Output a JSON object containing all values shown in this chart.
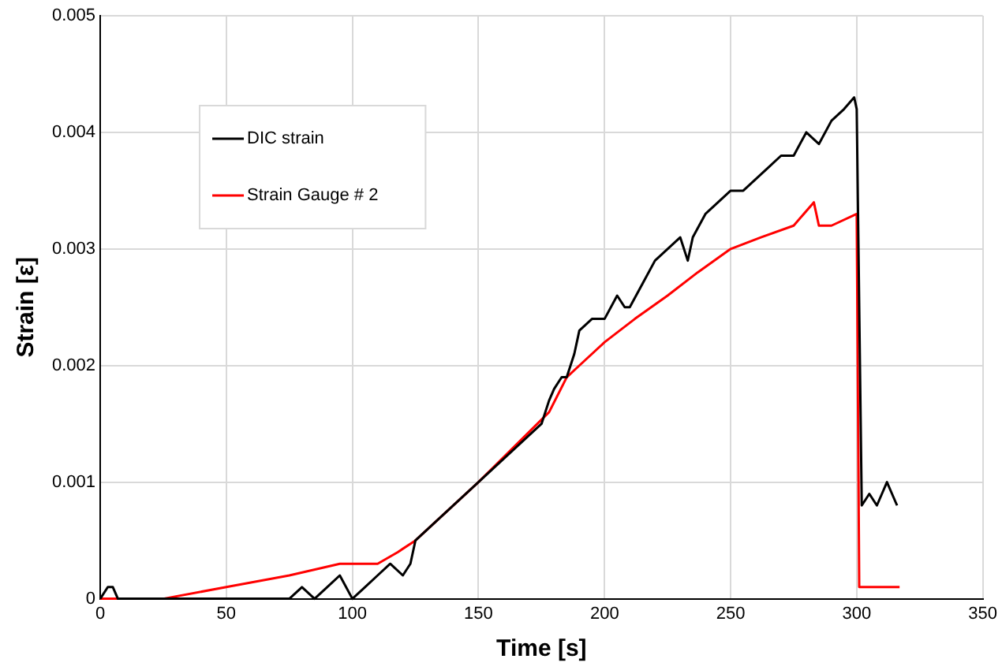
{
  "chart_data": {
    "type": "line",
    "xlabel": "Time [s]",
    "ylabel": "Strain [ε]",
    "xlim": [
      0,
      350
    ],
    "xticks": [
      0,
      50,
      100,
      150,
      200,
      250,
      300,
      350
    ],
    "ylim": [
      0,
      0.005
    ],
    "yticks": [
      0,
      0.001,
      0.002,
      0.003,
      0.004,
      0.005
    ],
    "grid": true,
    "legend": "top left",
    "marker": "none",
    "line_style": "solid",
    "series": [
      {
        "name": "DIC strain",
        "color": "#000000",
        "x": [
          0,
          3,
          5,
          7,
          10,
          13,
          15,
          20,
          30,
          50,
          75,
          80,
          85,
          90,
          95,
          100,
          105,
          110,
          115,
          120,
          123,
          125,
          150,
          175,
          178,
          180,
          183,
          185,
          188,
          190,
          195,
          200,
          205,
          208,
          210,
          215,
          220,
          225,
          230,
          233,
          235,
          240,
          245,
          250,
          255,
          260,
          265,
          270,
          275,
          280,
          285,
          290,
          295,
          299,
          300,
          302,
          305,
          308,
          310,
          312,
          314,
          316
        ],
        "values": [
          0,
          0.0001,
          0.0001,
          0,
          0,
          0,
          0,
          0,
          0,
          0,
          0,
          0.0001,
          0,
          0.0001,
          0.0002,
          0,
          0.0001,
          0.0002,
          0.0003,
          0.0002,
          0.0003,
          0.0005,
          0.001,
          0.0015,
          0.0017,
          0.0018,
          0.0019,
          0.0019,
          0.0021,
          0.0023,
          0.0024,
          0.0024,
          0.0026,
          0.0025,
          0.0025,
          0.0027,
          0.0029,
          0.003,
          0.0031,
          0.0029,
          0.0031,
          0.0033,
          0.0034,
          0.0035,
          0.0035,
          0.0036,
          0.0037,
          0.0038,
          0.0038,
          0.004,
          0.0039,
          0.0041,
          0.0042,
          0.0043,
          0.0042,
          0.0008,
          0.0009,
          0.0008,
          0.0009,
          0.001,
          0.0009,
          0.0008
        ]
      },
      {
        "name": "Strain Gauge # 2",
        "color": "#ff0000",
        "x": [
          0,
          10,
          25,
          50,
          75,
          95,
          110,
          118,
          125,
          150,
          178,
          185,
          190,
          200,
          212,
          225,
          237,
          250,
          262,
          275,
          283,
          285,
          290,
          300,
          301,
          317
        ],
        "values": [
          0,
          0,
          0,
          0.0001,
          0.0002,
          0.0003,
          0.0003,
          0.0004,
          0.0005,
          0.001,
          0.0016,
          0.0019,
          0.002,
          0.0022,
          0.0024,
          0.0026,
          0.0028,
          0.003,
          0.0031,
          0.0032,
          0.0034,
          0.0032,
          0.0032,
          0.0033,
          0.0001,
          0.0001
        ]
      }
    ]
  }
}
